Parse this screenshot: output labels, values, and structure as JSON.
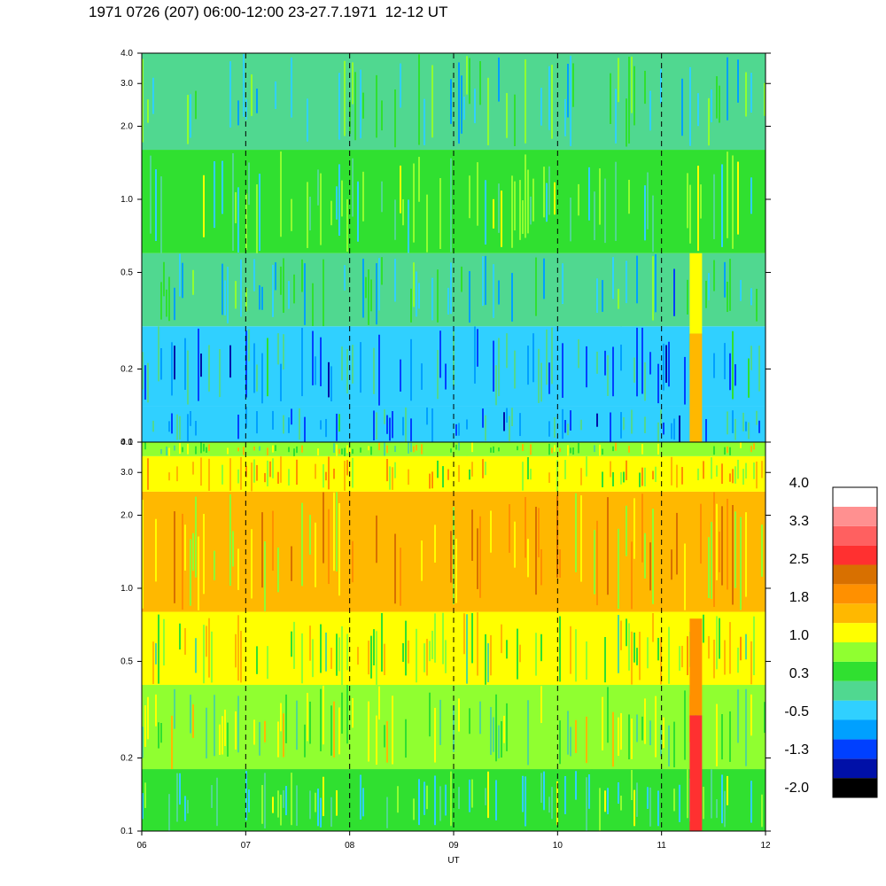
{
  "title": "1971 0726 (207) 06:00-12:00 23-27.7.1971  12-12 UT",
  "chart_data": [
    {
      "type": "heatmap",
      "panel": "upper",
      "x_ticks": [
        "06",
        "07",
        "08",
        "09",
        "10",
        "11",
        "12"
      ],
      "x_range": [
        6,
        12
      ],
      "y_scale": "log",
      "y_range": [
        0.1,
        4.0
      ],
      "y_ticks": [
        {
          "value": 0.1,
          "label": "0.1"
        },
        {
          "value": 0.2,
          "label": "0.2"
        },
        {
          "value": 0.5,
          "label": "0.5"
        },
        {
          "value": 1.0,
          "label": "1.0"
        },
        {
          "value": 2.0,
          "label": "2.0"
        },
        {
          "value": 3.0,
          "label": "3.0"
        },
        {
          "value": 4.0,
          "label": "4.0"
        }
      ],
      "dashed_gridlines_x": [
        7,
        8,
        9,
        10,
        11
      ],
      "band_levels": [
        {
          "y_from": 0.1,
          "y_to": 0.14,
          "level": -0.5
        },
        {
          "y_from": 0.14,
          "y_to": 0.3,
          "level": -0.5
        },
        {
          "y_from": 0.3,
          "y_to": 0.6,
          "level": -0.1
        },
        {
          "y_from": 0.6,
          "y_to": 1.6,
          "level": 0.3
        },
        {
          "y_from": 1.6,
          "y_to": 4.0,
          "level": 0.1
        }
      ],
      "events": [
        {
          "x": 11.33,
          "y_from": 0.1,
          "y_to": 0.28,
          "level": 1.5
        },
        {
          "x": 11.33,
          "y_from": 0.28,
          "y_to": 0.6,
          "level": 1.0
        }
      ]
    },
    {
      "type": "heatmap",
      "panel": "lower",
      "x_ticks": [
        "06",
        "07",
        "08",
        "09",
        "10",
        "11",
        "12"
      ],
      "x_range": [
        6,
        12
      ],
      "xlabel": "UT",
      "y_scale": "log",
      "y_range": [
        0.1,
        4.0
      ],
      "y_ticks": [
        {
          "value": 0.1,
          "label": "0.1"
        },
        {
          "value": 0.2,
          "label": "0.2"
        },
        {
          "value": 0.5,
          "label": "0.5"
        },
        {
          "value": 1.0,
          "label": "1.0"
        },
        {
          "value": 2.0,
          "label": "2.0"
        },
        {
          "value": 3.0,
          "label": "3.0"
        },
        {
          "value": 4.0,
          "label": "4.0"
        }
      ],
      "dashed_gridlines_x": [
        7,
        8,
        9,
        10,
        11
      ],
      "band_levels": [
        {
          "y_from": 0.1,
          "y_to": 0.18,
          "level": 0.3
        },
        {
          "y_from": 0.18,
          "y_to": 0.4,
          "level": 0.7
        },
        {
          "y_from": 0.4,
          "y_to": 0.8,
          "level": 1.0
        },
        {
          "y_from": 0.8,
          "y_to": 2.5,
          "level": 1.5
        },
        {
          "y_from": 2.5,
          "y_to": 3.5,
          "level": 1.3
        },
        {
          "y_from": 3.5,
          "y_to": 4.0,
          "level": 0.8
        }
      ],
      "events": [
        {
          "x": 11.33,
          "y_from": 0.1,
          "y_to": 0.3,
          "level": 2.6
        },
        {
          "x": 11.33,
          "y_from": 0.3,
          "y_to": 0.75,
          "level": 2.0
        }
      ]
    }
  ],
  "colorbar": {
    "labels": [
      "4.0",
      "3.3",
      "2.5",
      "1.8",
      "1.0",
      "0.3",
      "-0.5",
      "-1.3",
      "-2.0"
    ],
    "colors": [
      "#000000",
      "#0010a8",
      "#0040ff",
      "#00a0ff",
      "#30d0ff",
      "#50d890",
      "#30e030",
      "#90ff30",
      "#ffff00",
      "#ffb800",
      "#ff9000",
      "#d87000",
      "#ff3030",
      "#ff6060",
      "#ff9090",
      "#ffffff"
    ]
  }
}
